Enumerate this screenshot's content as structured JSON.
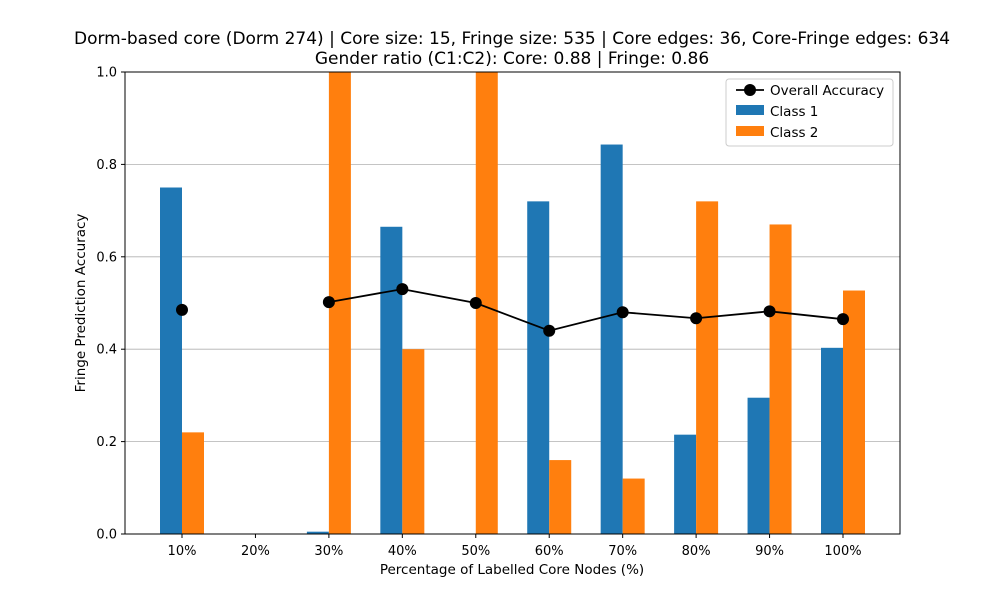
{
  "chart_data": {
    "type": "bar",
    "title": [
      "Dorm-based core (Dorm 274) | Core size: 15, Fringe size: 535 | Core edges: 36, Core-Fringe edges: 634",
      "Gender ratio (C1:C2): Core: 0.88 | Fringe: 0.86"
    ],
    "xlabel": "Percentage of Labelled Core Nodes (%)",
    "ylabel": "Fringe Prediction Accuracy",
    "ylim": [
      0,
      1.0
    ],
    "yticks": [
      "0.0",
      "0.2",
      "0.4",
      "0.6",
      "0.8",
      "1.0"
    ],
    "grid": "horizontal",
    "legend_position": "top-right",
    "categories": [
      "10%",
      "20%",
      "30%",
      "40%",
      "50%",
      "60%",
      "70%",
      "80%",
      "90%",
      "100%"
    ],
    "series": [
      {
        "name": "Class 1",
        "kind": "bar",
        "color": "#1f77b4",
        "values": [
          0.75,
          0.0,
          0.005,
          0.665,
          0.0,
          0.72,
          0.843,
          0.215,
          0.295,
          0.403
        ]
      },
      {
        "name": "Class 2",
        "kind": "bar",
        "color": "#ff7f0e",
        "values": [
          0.22,
          0.0,
          1.0,
          0.4,
          1.0,
          0.16,
          0.12,
          0.72,
          0.67,
          0.527
        ]
      },
      {
        "name": "Overall Accuracy",
        "kind": "line",
        "color": "#000000",
        "values": [
          0.485,
          null,
          0.502,
          0.53,
          0.5,
          0.44,
          0.48,
          0.467,
          0.482,
          0.465
        ]
      }
    ]
  }
}
